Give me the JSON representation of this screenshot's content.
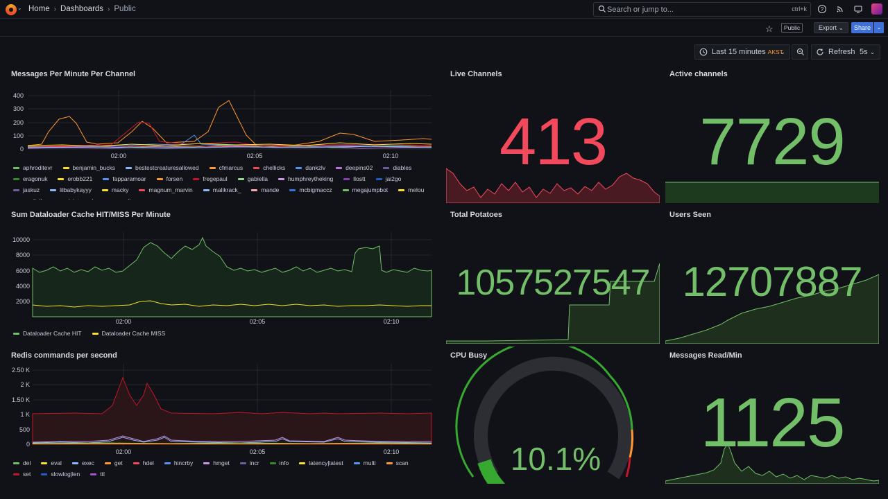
{
  "topbar": {
    "breadcrumb": [
      "Home",
      "Dashboards",
      "Public"
    ],
    "search_placeholder": "Search or jump to...",
    "search_shortcut": "ctrl+k"
  },
  "actions": {
    "public_badge": "Public",
    "export_label": "Export",
    "share_label": "Share"
  },
  "timepicker": {
    "range": "Last 15 minutes",
    "timezone": "AKST",
    "refresh_label": "Refresh",
    "interval": "5s"
  },
  "colors": {
    "red": "#f2495c",
    "green": "#73bf69",
    "yellow": "#fade2a",
    "orange": "#ff9830"
  },
  "panels": {
    "messages_per_minute": {
      "title": "Messages Per Minute Per Channel",
      "y_ticks": [
        "400",
        "300",
        "200",
        "100",
        "0"
      ],
      "x_ticks": [
        "02:00",
        "02:05",
        "02:10"
      ],
      "legend": [
        {
          "name": "aphroditevr",
          "color": "#73bf69"
        },
        {
          "name": "benjamin_bucks",
          "color": "#fade2a"
        },
        {
          "name": "bestestcreaturesallowed",
          "color": "#8ab8ff"
        },
        {
          "name": "cfmarcus",
          "color": "#ff9830"
        },
        {
          "name": "chellicks",
          "color": "#f2495c"
        },
        {
          "name": "dankzlv",
          "color": "#5794f2"
        },
        {
          "name": "deepins02",
          "color": "#b877d9"
        },
        {
          "name": "diables",
          "color": "#705da0"
        },
        {
          "name": "eragonuk",
          "color": "#37872d"
        },
        {
          "name": "erobb221",
          "color": "#fade2a"
        },
        {
          "name": "fapparamoar",
          "color": "#5794f2"
        },
        {
          "name": "forsen",
          "color": "#ff9830"
        },
        {
          "name": "fregepaul",
          "color": "#c4162a"
        },
        {
          "name": "gabiella",
          "color": "#96d98d"
        },
        {
          "name": "humphreytheking",
          "color": "#ca95e5"
        },
        {
          "name": "llostt",
          "color": "#8f3bb8"
        },
        {
          "name": "jai2go",
          "color": "#1f60c4"
        },
        {
          "name": "jaskuz",
          "color": "#705da0"
        },
        {
          "name": "lilbabykayyy",
          "color": "#8ab8ff"
        },
        {
          "name": "macky",
          "color": "#fade2a"
        },
        {
          "name": "magnum_marvin",
          "color": "#f2495c"
        },
        {
          "name": "malikrack_",
          "color": "#8ab8ff"
        },
        {
          "name": "mande",
          "color": "#ffa6b0"
        },
        {
          "name": "mcbigmaccz",
          "color": "#3274d9"
        },
        {
          "name": "megajumpbot",
          "color": "#73bf69"
        },
        {
          "name": "melou",
          "color": "#fade2a"
        },
        {
          "name": "nerdiella",
          "color": "#5794f2"
        },
        {
          "name": "nicistemmler",
          "color": "#ff9830"
        },
        {
          "name": "nosliree",
          "color": "#c4162a"
        }
      ]
    },
    "live_channels": {
      "title": "Live Channels",
      "value": "413"
    },
    "active_channels": {
      "title": "Active channels",
      "value": "7729"
    },
    "dataloader": {
      "title": "Sum Dataloader Cache HIT/MISS Per Minute",
      "y_ticks": [
        "10000",
        "8000",
        "6000",
        "4000",
        "2000"
      ],
      "x_ticks": [
        "02:00",
        "02:05",
        "02:10"
      ],
      "legend": [
        {
          "name": "Dataloader Cache HIT",
          "color": "#73bf69"
        },
        {
          "name": "Dataloader Cache MISS",
          "color": "#fade2a"
        }
      ]
    },
    "total_potatoes": {
      "title": "Total Potatoes",
      "value": "1057527547"
    },
    "users_seen": {
      "title": "Users Seen",
      "value": "12707887"
    },
    "redis": {
      "title": "Redis commands per second",
      "y_ticks": [
        "2.50 K",
        "2 K",
        "1.50 K",
        "1 K",
        "500",
        "0"
      ],
      "x_ticks": [
        "02:00",
        "02:05",
        "02:10"
      ],
      "legend": [
        {
          "name": "del",
          "color": "#73bf69"
        },
        {
          "name": "eval",
          "color": "#fade2a"
        },
        {
          "name": "exec",
          "color": "#8ab8ff"
        },
        {
          "name": "get",
          "color": "#ff9830"
        },
        {
          "name": "hdel",
          "color": "#f2495c"
        },
        {
          "name": "hincrby",
          "color": "#5794f2"
        },
        {
          "name": "hmget",
          "color": "#ca95e5"
        },
        {
          "name": "incr",
          "color": "#705da0"
        },
        {
          "name": "info",
          "color": "#37872d"
        },
        {
          "name": "latency|latest",
          "color": "#fade2a"
        },
        {
          "name": "multi",
          "color": "#5794f2"
        },
        {
          "name": "scan",
          "color": "#ff9830"
        },
        {
          "name": "set",
          "color": "#c4162a"
        },
        {
          "name": "slowlog|len",
          "color": "#1f60c4"
        },
        {
          "name": "ttl",
          "color": "#a352cc"
        }
      ]
    },
    "cpu_busy": {
      "title": "CPU Busy",
      "value": "10.1%",
      "fraction": 0.101
    },
    "messages_read": {
      "title": "Messages Read/Min",
      "value": "1125"
    }
  }
}
